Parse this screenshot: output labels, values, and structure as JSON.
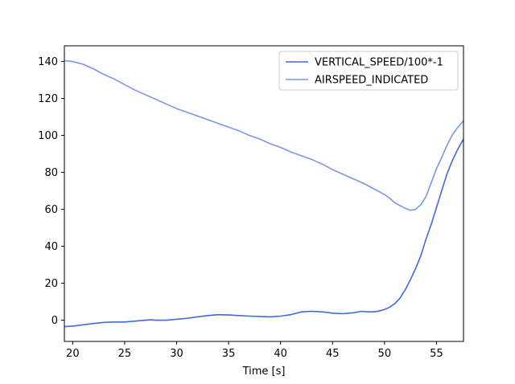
{
  "chart_data": {
    "type": "line",
    "title": "",
    "xlabel": "Time [s]",
    "ylabel": "",
    "xlim": [
      19.2,
      57.6
    ],
    "ylim": [
      -11.5,
      148.5
    ],
    "xticks": [
      20,
      25,
      30,
      35,
      40,
      45,
      50,
      55
    ],
    "yticks": [
      0,
      20,
      40,
      60,
      80,
      100,
      120,
      140
    ],
    "grid": false,
    "legend_position": "top-right",
    "colors": {
      "vertical_speed": "#4169e1",
      "airspeed": "#7b96e8"
    },
    "series": [
      {
        "name": "VERTICAL_SPEED/100*-1",
        "x": [
          19.2,
          20.0,
          21.0,
          22.0,
          23.0,
          24.0,
          25.0,
          26.0,
          27.0,
          27.5,
          28.0,
          29.0,
          30.0,
          31.0,
          32.0,
          33.0,
          34.0,
          35.0,
          36.0,
          37.0,
          38.0,
          39.0,
          40.0,
          41.0,
          42.0,
          43.0,
          44.0,
          45.0,
          46.0,
          47.0,
          47.8,
          48.5,
          49.0,
          49.5,
          50.0,
          50.5,
          51.0,
          51.5,
          52.0,
          52.5,
          53.0,
          53.5,
          54.0,
          54.5,
          55.0,
          55.5,
          56.0,
          56.5,
          57.0,
          57.6
        ],
        "y": [
          -3.5,
          -3.2,
          -2.5,
          -1.8,
          -1.2,
          -1.0,
          -1.0,
          -0.5,
          0.0,
          0.2,
          0.0,
          0.0,
          0.5,
          1.0,
          1.8,
          2.5,
          3.0,
          2.8,
          2.5,
          2.2,
          2.0,
          1.8,
          2.2,
          3.0,
          4.5,
          4.8,
          4.5,
          3.8,
          3.5,
          4.0,
          4.8,
          4.5,
          4.5,
          5.0,
          5.8,
          7.0,
          9.0,
          12.0,
          16.5,
          22.0,
          28.0,
          35.0,
          44.0,
          52.0,
          61.0,
          70.0,
          79.0,
          86.0,
          92.0,
          98.0
        ]
      },
      {
        "name": "AIRSPEED_INDICATED",
        "x": [
          19.2,
          20.0,
          21.0,
          22.0,
          23.0,
          24.0,
          25.0,
          26.0,
          27.0,
          28.0,
          29.0,
          30.0,
          31.0,
          32.0,
          33.0,
          34.0,
          35.0,
          36.0,
          37.0,
          38.0,
          39.0,
          40.0,
          41.0,
          42.0,
          43.0,
          44.0,
          45.0,
          46.0,
          47.0,
          48.0,
          49.0,
          50.0,
          50.5,
          51.0,
          51.5,
          52.0,
          52.5,
          53.0,
          53.5,
          54.0,
          54.5,
          55.0,
          55.5,
          56.0,
          56.5,
          57.0,
          57.6
        ],
        "y": [
          140.5,
          140.0,
          138.5,
          136.0,
          133.0,
          130.5,
          127.5,
          124.5,
          122.0,
          119.5,
          117.0,
          114.5,
          112.5,
          110.5,
          108.5,
          106.5,
          104.5,
          102.5,
          100.0,
          98.0,
          95.5,
          93.5,
          91.0,
          89.0,
          87.0,
          84.5,
          81.5,
          79.0,
          76.5,
          74.0,
          71.0,
          68.0,
          66.0,
          63.5,
          62.0,
          60.5,
          59.5,
          60.0,
          62.5,
          67.0,
          74.5,
          82.0,
          88.0,
          94.5,
          100.0,
          104.0,
          108.0
        ]
      }
    ]
  }
}
